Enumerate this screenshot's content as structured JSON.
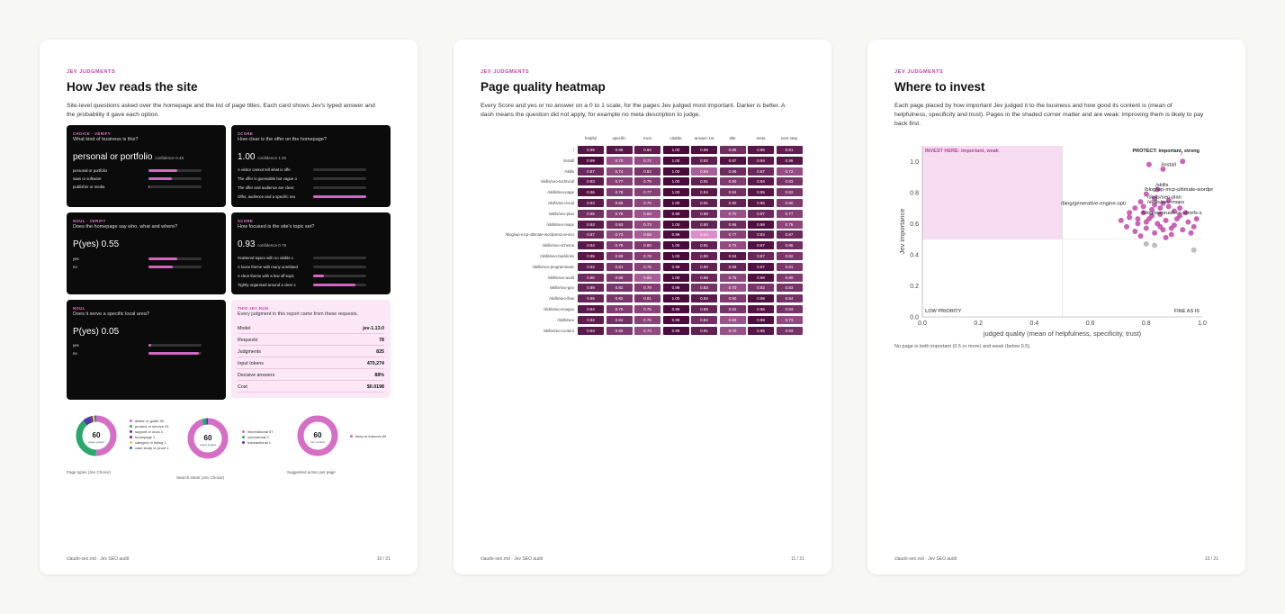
{
  "pages": [
    {
      "kicker": "JEV JUDGMENTS",
      "title": "How Jev reads the site",
      "intro": "Site-level questions asked over the homepage and the list of page titles. Each card shows Jev's typed answer and the probability it gave each option.",
      "footer_left": "claude-seo.md · Jev SEO audit",
      "footer_right": "10 / 21",
      "cards": [
        {
          "kicker": "CHOICE · VERIFY",
          "question": "What kind of business is this?",
          "answer": "personal or portfolio",
          "confidence": "confidence 0.49",
          "options": [
            {
              "label": "personal or portfolio",
              "value": "0.55",
              "p": 0.55
            },
            {
              "label": "saas or software",
              "value": "0.44",
              "p": 0.44
            },
            {
              "label": "publisher or media",
              "value": "0.01",
              "p": 0.01
            }
          ]
        },
        {
          "kicker": "SCORE",
          "question": "How clear is the offer on the homepage?",
          "answer": "1.00",
          "confidence": "confidence 1.00",
          "options": [
            {
              "label": "A visitor cannot tell what is offe",
              "value": "0.00",
              "p": 0
            },
            {
              "label": "The offer is guessable but vague o",
              "value": "0.00",
              "p": 0
            },
            {
              "label": "The offer and audience are clear;",
              "value": "0.00",
              "p": 0
            },
            {
              "label": "Offer, audience and a specific rea",
              "value": "1.00",
              "p": 1.0
            }
          ]
        },
        {
          "kicker": "NOUL · VERIFY",
          "question": "Does the homepage say who, what and where?",
          "answer": "P(yes) 0.55",
          "confidence": "",
          "options": [
            {
              "label": "yes",
              "value": "0.55",
              "p": 0.55
            },
            {
              "label": "no",
              "value": "0.45",
              "p": 0.45
            }
          ]
        },
        {
          "kicker": "SCORE",
          "question": "How focused is the site's topic set?",
          "answer": "0.93",
          "confidence": "confidence 0.79",
          "options": [
            {
              "label": "Scattered topics with no visible c",
              "value": "0.00",
              "p": 0
            },
            {
              "label": "A loose theme with many unrelated",
              "value": "0.00",
              "p": 0
            },
            {
              "label": "A clear theme with a few off-topic",
              "value": "0.21",
              "p": 0.21
            },
            {
              "label": "Tightly organised around a clear s",
              "value": "0.79",
              "p": 0.79
            }
          ]
        },
        {
          "kicker": "NOUL",
          "question": "Does it serve a specific local area?",
          "answer": "P(yes) 0.05",
          "confidence": "",
          "options": [
            {
              "label": "yes",
              "value": "0.05",
              "p": 0.05
            },
            {
              "label": "no",
              "value": "0.95",
              "p": 0.95
            }
          ]
        }
      ],
      "run": {
        "kicker": "THIS JEV RUN",
        "desc": "Every judgment in this report came from these requests.",
        "rows": [
          {
            "k": "Model",
            "v": "jev-1.13.0"
          },
          {
            "k": "Requests",
            "v": "78"
          },
          {
            "k": "Judgments",
            "v": "825"
          },
          {
            "k": "Input tokens",
            "v": "470,274"
          },
          {
            "k": "Decisive answers",
            "v": "88%"
          },
          {
            "k": "Cost",
            "v": "$0.0198"
          }
        ]
      },
      "donuts": [
        {
          "total": "60",
          "sub": "pages judged",
          "caption": "Page types (Jev Choice)",
          "legend": [
            {
              "label": "article or guide 30",
              "color": "#d56ec4",
              "value": 30
            },
            {
              "label": "product or service 23",
              "color": "#2aa86b",
              "value": 23
            },
            {
              "label": "support or docs 4",
              "color": "#4b3ba8",
              "value": 4
            },
            {
              "label": "homepage 1",
              "color": "#6b2a7a",
              "value": 1
            },
            {
              "label": "category or listing 1",
              "color": "#f0c052",
              "value": 1
            },
            {
              "label": "case study or proof 1",
              "color": "#2f6fb0",
              "value": 1
            }
          ]
        },
        {
          "total": "60",
          "sub": "pages judged",
          "caption": "Search intent (Jev Choice)",
          "legend": [
            {
              "label": "informational 57",
              "color": "#d56ec4",
              "value": 57
            },
            {
              "label": "commercial 2",
              "color": "#2aa86b",
              "value": 2
            },
            {
              "label": "transactional 1",
              "color": "#4b3ba8",
              "value": 1
            }
          ]
        },
        {
          "total": "60",
          "sub": "sec verdicts",
          "caption": "Suggested action per page",
          "legend": [
            {
              "label": "keep or improve 60",
              "color": "#d56ec4",
              "value": 60
            }
          ]
        }
      ]
    },
    {
      "kicker": "JEV JUDGMENTS",
      "title": "Page quality heatmap",
      "intro": "Every Score and yes or no answer on a 0 to 1 scale, for the pages Jev judged most important. Darker is better. A dash means the question did not apply, for example no meta description to judge.",
      "footer_left": "claude-seo.md · Jev SEO audit",
      "footer_right": "11 / 21",
      "columns": [
        "helpful",
        "specific",
        "trust",
        "citable",
        "answer 1st",
        "title",
        "meta",
        "next step"
      ],
      "rows": [
        {
          "page": "/",
          "values": [
            "0.95",
            "0.95",
            "0.92",
            "1.00",
            "0.98",
            "0.85",
            "0.95",
            "0.91"
          ]
        },
        {
          "page": "/install",
          "values": [
            "0.99",
            "0.70",
            "0.72",
            "1.00",
            "0.92",
            "0.97",
            "0.94",
            "0.95"
          ]
        },
        {
          "page": "/skills",
          "values": [
            "0.87",
            "0.74",
            "0.82",
            "1.00",
            "0.64",
            "0.86",
            "0.87",
            "0.72"
          ]
        },
        {
          "page": "/skills/seo-technical",
          "values": [
            "0.93",
            "0.77",
            "0.79",
            "1.00",
            "0.91",
            "0.80",
            "0.94",
            "0.83"
          ]
        },
        {
          "page": "/skills/seo-page",
          "values": [
            "0.96",
            "0.78",
            "0.77",
            "1.00",
            "0.94",
            "0.84",
            "0.95",
            "0.82"
          ]
        },
        {
          "page": "/skills/seo-local",
          "values": [
            "0.93",
            "0.80",
            "0.75",
            "1.00",
            "0.91",
            "0.90",
            "0.95",
            "0.80"
          ]
        },
        {
          "page": "/skills/seo-plan",
          "values": [
            "0.85",
            "0.76",
            "0.69",
            "0.99",
            "0.88",
            "0.70",
            "0.87",
            "0.77"
          ]
        },
        {
          "page": "/skills/seo-maps",
          "values": [
            "0.93",
            "0.83",
            "0.73",
            "1.00",
            "0.90",
            "0.86",
            "0.98",
            "0.75"
          ]
        },
        {
          "page": "/blog/wp-mcp-ultimate-wordpress-ai-seo",
          "values": [
            "0.87",
            "0.73",
            "0.65",
            "0.99",
            "0.44",
            "0.77",
            "0.93",
            "0.87"
          ]
        },
        {
          "page": "/skills/seo-schema",
          "values": [
            "0.94",
            "0.78",
            "0.80",
            "1.00",
            "0.91",
            "0.72",
            "0.97",
            "0.85"
          ]
        },
        {
          "page": "/skills/seo-backlinks",
          "values": [
            "0.95",
            "0.80",
            "0.78",
            "1.00",
            "0.90",
            "0.94",
            "0.87",
            "0.82"
          ]
        },
        {
          "page": "/skills/seo-programmatic",
          "values": [
            "0.92",
            "0.81",
            "0.76",
            "0.99",
            "0.90",
            "0.89",
            "0.97",
            "0.81"
          ]
        },
        {
          "page": "/skills/seo-audit",
          "values": [
            "0.86",
            "0.80",
            "0.65",
            "1.00",
            "0.88",
            "0.75",
            "0.98",
            "0.80"
          ]
        },
        {
          "page": "/skills/seo-geo",
          "values": [
            "0.89",
            "0.82",
            "0.79",
            "0.99",
            "0.83",
            "0.70",
            "0.82",
            "0.83"
          ]
        },
        {
          "page": "/skills/seo-flow",
          "values": [
            "0.89",
            "0.82",
            "0.81",
            "1.00",
            "0.93",
            "0.80",
            "0.98",
            "0.84"
          ]
        },
        {
          "page": "/skills/seo-images",
          "values": [
            "0.94",
            "0.79",
            "0.76",
            "0.99",
            "0.89",
            "0.82",
            "0.96",
            "0.83"
          ]
        },
        {
          "page": "/skills/seo",
          "values": [
            "0.92",
            "0.84",
            "0.76",
            "0.99",
            "0.84",
            "0.69",
            "0.98",
            "0.73"
          ]
        },
        {
          "page": "/skills/seo-content",
          "values": [
            "0.93",
            "0.80",
            "0.73",
            "0.99",
            "0.91",
            "0.70",
            "0.95",
            "0.83"
          ]
        }
      ]
    },
    {
      "kicker": "JEV JUDGMENTS",
      "title": "Where to invest",
      "intro": "Each page placed by how important Jev judged it to the business and how good its content is (mean of helpfulness, specificity and trust). Pages in the shaded corner matter and are weak: improving them is likely to pay back first.",
      "footer_left": "claude-seo.md · Jev SEO audit",
      "footer_right": "13 / 21",
      "note": "No page is both important (0.5 or more) and weak (below 0.5).",
      "chart_data": {
        "type": "scatter",
        "xlabel": "judged quality (mean of helpfulness, specificity, trust)",
        "ylabel": "Jev importance",
        "xlim": [
          0,
          1.0
        ],
        "ylim": [
          0,
          1.1
        ],
        "xticks": [
          "0.0",
          "0.2",
          "0.4",
          "0.6",
          "0.8",
          "1.0"
        ],
        "yticks": [
          "0.0",
          "0.2",
          "0.4",
          "0.6",
          "0.8",
          "1.0"
        ],
        "threshold_x": 0.5,
        "threshold_y": 0.5,
        "quadrants": {
          "top_left": "INVEST HERE: important, weak",
          "top_right": "PROTECT: important, strong",
          "bottom_left": "LOW PRIORITY",
          "bottom_right": "FINE AS IS"
        },
        "labels": [
          {
            "text": "/",
            "x": 0.93,
            "y": 1.04
          },
          {
            "text": "/install",
            "x": 0.86,
            "y": 0.97
          },
          {
            "text": "/skills",
            "x": 0.84,
            "y": 0.84
          },
          {
            "text": "/blog/wp-mcp-ultimate-wordpr",
            "x": 0.8,
            "y": 0.81
          },
          {
            "text": "/skills/seo-plan",
            "x": 0.81,
            "y": 0.76
          },
          {
            "text": "/skills/seo-maps",
            "x": 0.81,
            "y": 0.73
          },
          {
            "text": "/blog/generative-engine-opti",
            "x": 0.72,
            "y": 0.72
          },
          {
            "text": "/blog/semrush-vs-ahrefs-s",
            "x": 0.79,
            "y": 0.66
          }
        ],
        "points": [
          {
            "x": 0.93,
            "y": 1.0
          },
          {
            "x": 0.81,
            "y": 0.98
          },
          {
            "x": 0.86,
            "y": 0.95
          },
          {
            "x": 0.84,
            "y": 0.82
          },
          {
            "x": 0.8,
            "y": 0.79
          },
          {
            "x": 0.83,
            "y": 0.76
          },
          {
            "x": 0.78,
            "y": 0.74
          },
          {
            "x": 0.86,
            "y": 0.73
          },
          {
            "x": 0.88,
            "y": 0.71
          },
          {
            "x": 0.76,
            "y": 0.7
          },
          {
            "x": 0.82,
            "y": 0.69
          },
          {
            "x": 0.9,
            "y": 0.68
          },
          {
            "x": 0.79,
            "y": 0.67
          },
          {
            "x": 0.85,
            "y": 0.66
          },
          {
            "x": 0.92,
            "y": 0.65
          },
          {
            "x": 0.74,
            "y": 0.64
          },
          {
            "x": 0.81,
            "y": 0.63
          },
          {
            "x": 0.87,
            "y": 0.62
          },
          {
            "x": 0.95,
            "y": 0.61
          },
          {
            "x": 0.77,
            "y": 0.6
          },
          {
            "x": 0.84,
            "y": 0.6
          },
          {
            "x": 0.9,
            "y": 0.59
          },
          {
            "x": 0.97,
            "y": 0.58
          },
          {
            "x": 0.73,
            "y": 0.58
          },
          {
            "x": 0.8,
            "y": 0.57
          },
          {
            "x": 0.86,
            "y": 0.56
          },
          {
            "x": 0.93,
            "y": 0.56
          },
          {
            "x": 0.76,
            "y": 0.55
          },
          {
            "x": 0.83,
            "y": 0.54
          },
          {
            "x": 0.89,
            "y": 0.53
          },
          {
            "x": 0.96,
            "y": 0.54
          },
          {
            "x": 0.71,
            "y": 0.62
          },
          {
            "x": 0.88,
            "y": 0.75
          },
          {
            "x": 0.92,
            "y": 0.7
          },
          {
            "x": 0.79,
            "y": 0.71
          },
          {
            "x": 0.85,
            "y": 0.58
          },
          {
            "x": 0.91,
            "y": 0.63
          },
          {
            "x": 0.82,
            "y": 0.65
          },
          {
            "x": 0.78,
            "y": 0.52
          },
          {
            "x": 0.87,
            "y": 0.51
          },
          {
            "x": 0.94,
            "y": 0.67
          },
          {
            "x": 0.74,
            "y": 0.67
          },
          {
            "x": 0.98,
            "y": 0.63
          },
          {
            "x": 0.83,
            "y": 0.72
          },
          {
            "x": 0.89,
            "y": 0.57
          },
          {
            "x": 0.8,
            "y": 0.61
          },
          {
            "x": 0.77,
            "y": 0.63
          },
          {
            "x": 0.85,
            "y": 0.7
          }
        ],
        "low_points": [
          {
            "x": 0.8,
            "y": 0.47
          },
          {
            "x": 0.83,
            "y": 0.46
          },
          {
            "x": 0.97,
            "y": 0.43
          }
        ]
      }
    }
  ],
  "colors": {
    "accent": "#c23ea8",
    "point": "#c04aaa",
    "low_point": "#bdbdbd",
    "invest_zone": "#f7dcf1",
    "heat_dark": "#4a0a3a",
    "heat_light": "#e48fd2"
  }
}
